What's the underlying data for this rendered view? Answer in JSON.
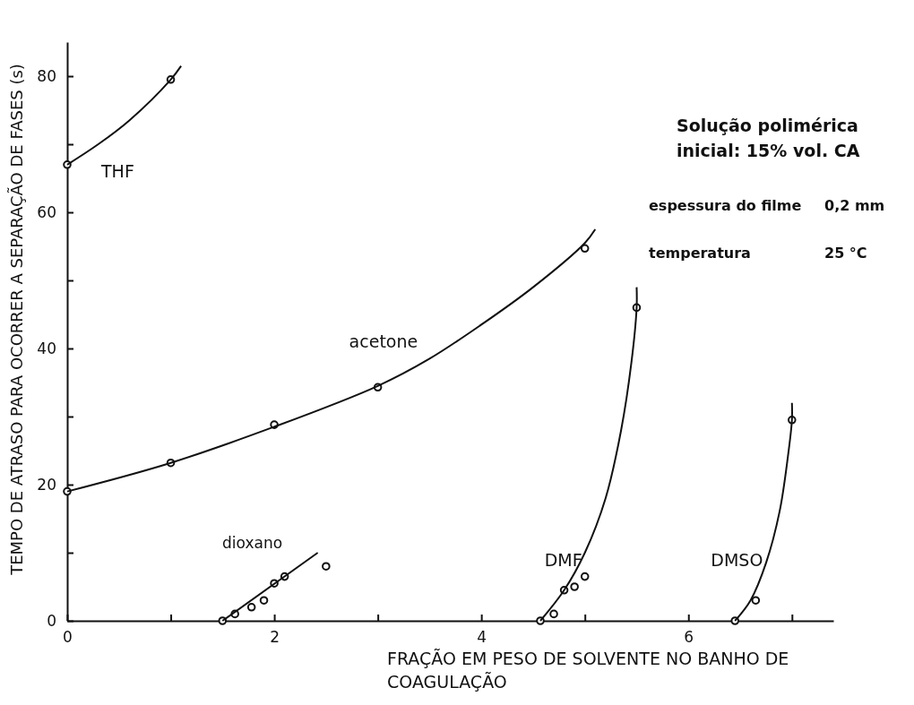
{
  "chart_data": {
    "type": "scatter",
    "xlabel": "FRAÇÃO EM PESO DE SOLVENTE NO BANHO DE COAGULAÇÃO",
    "ylabel": "TEMPO DE ATRASO PARA OCORRER A SEPARAÇÃO DE FASES (s)",
    "xlim": [
      0,
      7.4
    ],
    "ylim": [
      0,
      85
    ],
    "xticks": [
      0,
      {
        "value": 1,
        "label": null
      },
      2,
      {
        "value": 3,
        "label": null
      },
      4,
      {
        "value": 5,
        "label": null
      },
      6,
      {
        "value": 7,
        "label": null
      }
    ],
    "yticks": [
      0,
      {
        "value": 10,
        "label": null
      },
      20,
      {
        "value": 30,
        "label": null
      },
      40,
      {
        "value": 50,
        "label": null
      },
      60,
      {
        "value": 70,
        "label": null
      },
      80
    ],
    "grid": false,
    "marker": "circle",
    "series": [
      {
        "name": "THF",
        "color": "#111111",
        "x": [
          0,
          1.0
        ],
        "values": [
          67,
          79.5
        ]
      },
      {
        "name": "acetone",
        "color": "#111111",
        "x": [
          0,
          1,
          2,
          3,
          5
        ],
        "values": [
          19,
          23.2,
          28.8,
          34.3,
          54.7
        ]
      },
      {
        "name": "dioxano",
        "color": "#111111",
        "x": [
          1.5,
          1.62,
          1.78,
          1.9,
          2.0,
          2.1,
          2.5
        ],
        "values": [
          0,
          1,
          2,
          3,
          5.5,
          6.5,
          8
        ]
      },
      {
        "name": "DMF",
        "color": "#111111",
        "x": [
          4.57,
          4.7,
          4.8,
          4.9,
          5.0,
          5.5
        ],
        "values": [
          0,
          1,
          4.5,
          5,
          6.5,
          46
        ]
      },
      {
        "name": "DMSO",
        "color": "#111111",
        "x": [
          6.45,
          6.65,
          7.0
        ],
        "values": [
          0,
          3,
          29.5
        ]
      },
      {
        "type": "line",
        "marker": "none",
        "color": "#111111",
        "x": [
          0,
          0.3,
          0.6,
          1.0,
          1.1
        ],
        "values": [
          67,
          70,
          73.5,
          79.5,
          81.5
        ]
      },
      {
        "type": "line",
        "marker": "none",
        "color": "#111111",
        "x": [
          0,
          1,
          2,
          3,
          3.5,
          4,
          4.5,
          5,
          5.1
        ],
        "values": [
          19,
          23.2,
          28.5,
          34.5,
          38.5,
          43.5,
          49,
          55.5,
          57.5
        ]
      },
      {
        "type": "line",
        "marker": "none",
        "color": "#111111",
        "x": [
          1.5,
          2.42
        ],
        "values": [
          0,
          10
        ]
      },
      {
        "type": "line",
        "marker": "none",
        "color": "#111111",
        "x": [
          4.57,
          4.8,
          5.0,
          5.2,
          5.35,
          5.45,
          5.5,
          5.5
        ],
        "values": [
          0,
          4.5,
          10,
          18,
          28,
          38,
          46,
          49
        ]
      },
      {
        "type": "line",
        "marker": "none",
        "color": "#111111",
        "x": [
          6.45,
          6.6,
          6.75,
          6.88,
          6.96,
          7.0,
          7.0
        ],
        "values": [
          0,
          3,
          8.5,
          16,
          24,
          29.5,
          32
        ]
      }
    ],
    "annotations": [
      "Solução polimérica",
      "inicial: 15% vol. CA",
      "espessura do filme",
      "0,2 mm",
      "temperatura",
      "25 °C"
    ]
  }
}
